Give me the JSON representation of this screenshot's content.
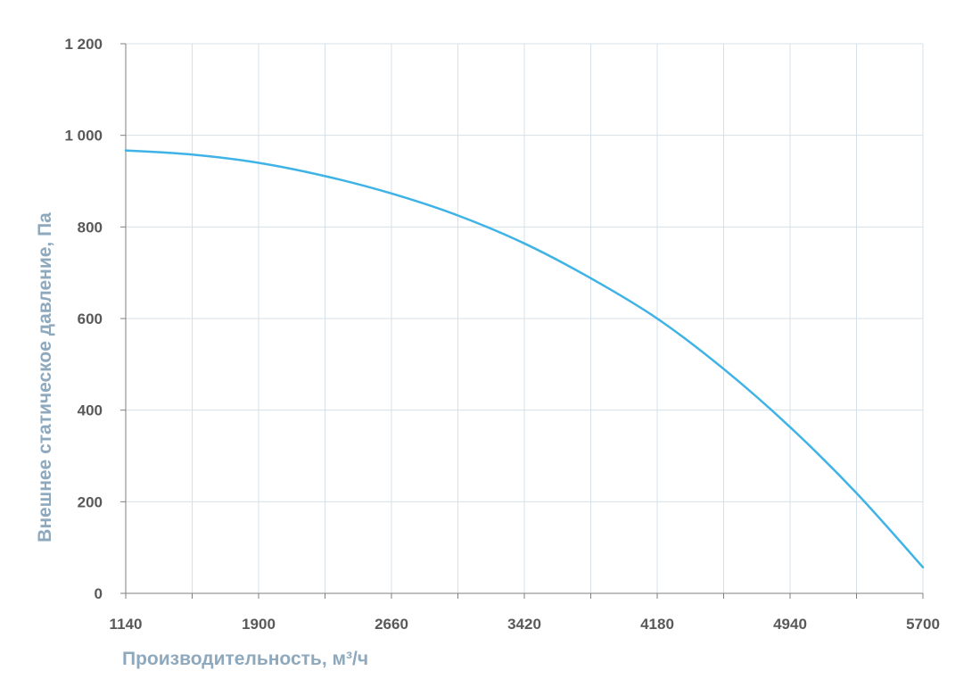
{
  "chart_data": {
    "type": "line",
    "xlabel": "Производительность, м³/ч",
    "ylabel": "Внешнее статическое давление, Па",
    "xlim": [
      1140,
      5700
    ],
    "ylim": [
      0,
      1200
    ],
    "x_ticks": [
      1140,
      1900,
      2660,
      3420,
      4180,
      4940,
      5700
    ],
    "x_tick_labels": [
      "1140",
      "1900",
      "2660",
      "3420",
      "4180",
      "4940",
      "5700"
    ],
    "x_minor_gridlines": [
      1520,
      2280,
      3040,
      3800,
      4560,
      5320
    ],
    "y_ticks": [
      0,
      200,
      400,
      600,
      800,
      1000,
      1200
    ],
    "y_tick_labels": [
      "0",
      "200",
      "400",
      "600",
      "800",
      "1 000",
      "1 200"
    ],
    "grid": true,
    "legend": "none",
    "series": [
      {
        "color": "#3fb3e6",
        "x": [
          1140,
          1520,
          1900,
          2280,
          2660,
          3040,
          3420,
          3800,
          4180,
          4560,
          4940,
          5320,
          5700
        ],
        "y": [
          967,
          958,
          940,
          911,
          873,
          825,
          764,
          688,
          600,
          490,
          363,
          219,
          57
        ]
      }
    ]
  }
}
